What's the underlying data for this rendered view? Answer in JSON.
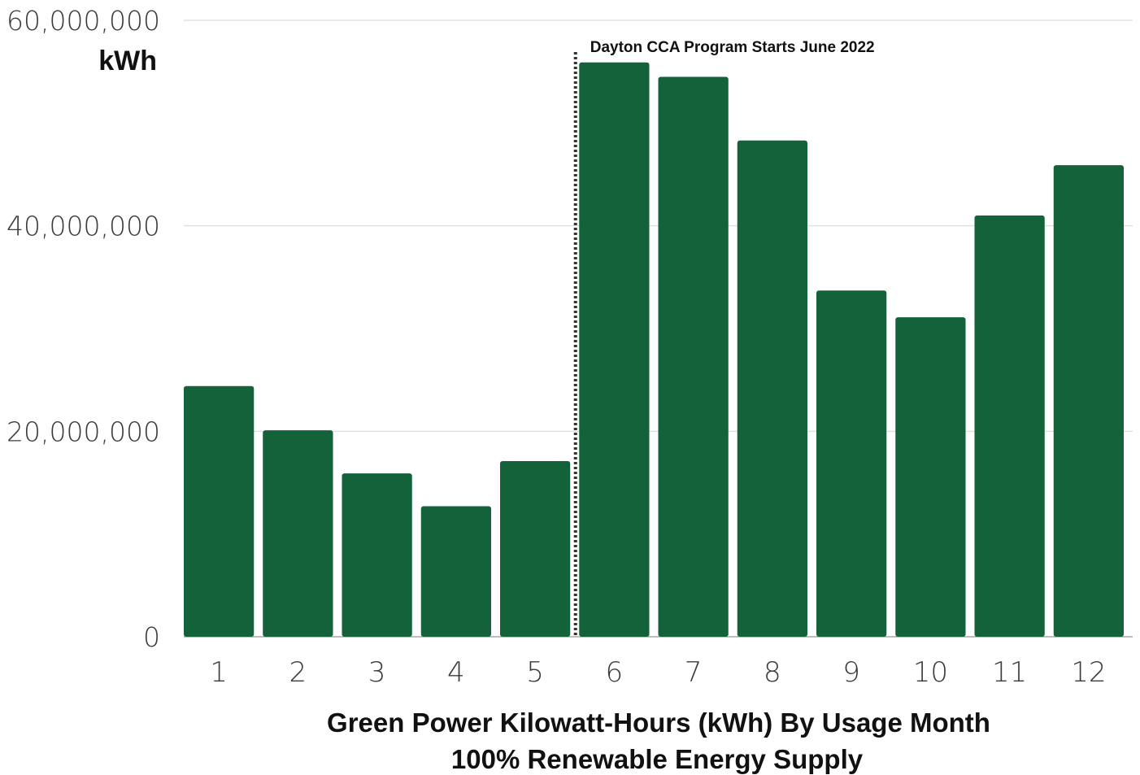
{
  "chart_data": {
    "type": "bar",
    "title": "Green Power Kilowatt-Hours (kWh) By Usage Month",
    "subtitle": "100% Renewable Energy Supply",
    "ylabel": "kWh",
    "xlabel": "",
    "categories": [
      "1",
      "2",
      "3",
      "4",
      "5",
      "6",
      "7",
      "8",
      "9",
      "10",
      "11",
      "12"
    ],
    "values": [
      24400000,
      20100000,
      15900000,
      12700000,
      17100000,
      55900000,
      54500000,
      48300000,
      33700000,
      31100000,
      41000000,
      45900000
    ],
    "ylim": [
      0,
      60000000
    ],
    "yticks": [
      0,
      20000000,
      40000000,
      60000000
    ],
    "ytick_labels": [
      "0",
      "20,000,000",
      "40,000,000",
      "60,000,000"
    ],
    "grid": true,
    "bar_color": "#13623a",
    "annotation": {
      "text": "Dayton CCA Program Starts June 2022",
      "between_categories": [
        "5",
        "6"
      ],
      "line_style": "dotted"
    }
  }
}
